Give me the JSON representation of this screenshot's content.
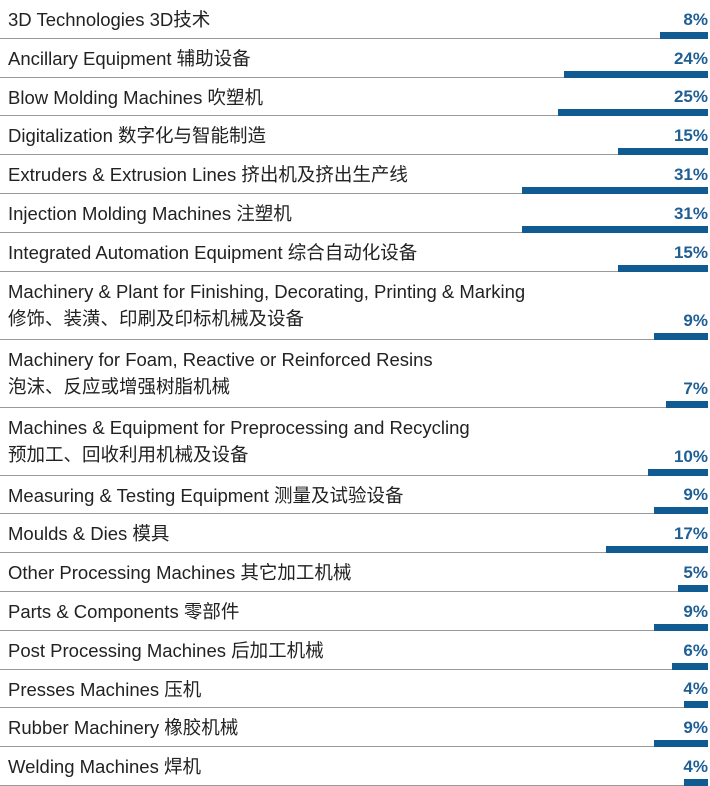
{
  "chart_data": {
    "type": "bar",
    "orientation": "horizontal",
    "color": "#0f5b92",
    "categories": [
      "3D Technologies 3D技术",
      "Ancillary Equipment 辅助设备",
      "Blow Molding Machines 吹塑机",
      "Digitalization 数字化与智能制造",
      "Extruders & Extrusion Lines 挤出机及挤出生产线",
      "Injection Molding Machines 注塑机",
      "Integrated Automation Equipment 综合自动化设备",
      "Machinery & Plant for Finishing, Decorating, Printing & Marking\n修饰、装潢、印刷及印标机械及设备",
      "Machinery for Foam, Reactive or Reinforced Resins\n泡沫、反应或增强树脂机械",
      "Machines & Equipment for Preprocessing and Recycling\n预加工、回收利用机械及设备",
      "Measuring & Testing Equipment 测量及试验设备",
      "Moulds & Dies 模具",
      "Other Processing Machines 其它加工机械",
      "Parts & Components 零部件",
      "Post Processing Machines 后加工机械",
      "Presses Machines 压机",
      "Rubber Machinery 橡胶机械",
      "Welding Machines 焊机"
    ],
    "values": [
      8,
      24,
      25,
      15,
      31,
      31,
      15,
      9,
      7,
      10,
      9,
      17,
      5,
      9,
      6,
      4,
      9,
      4
    ],
    "value_labels": [
      "8%",
      "24%",
      "25%",
      "15%",
      "31%",
      "31%",
      "15%",
      "9%",
      "7%",
      "10%",
      "9%",
      "17%",
      "5%",
      "9%",
      "6%",
      "4%",
      "9%",
      "4%"
    ]
  }
}
